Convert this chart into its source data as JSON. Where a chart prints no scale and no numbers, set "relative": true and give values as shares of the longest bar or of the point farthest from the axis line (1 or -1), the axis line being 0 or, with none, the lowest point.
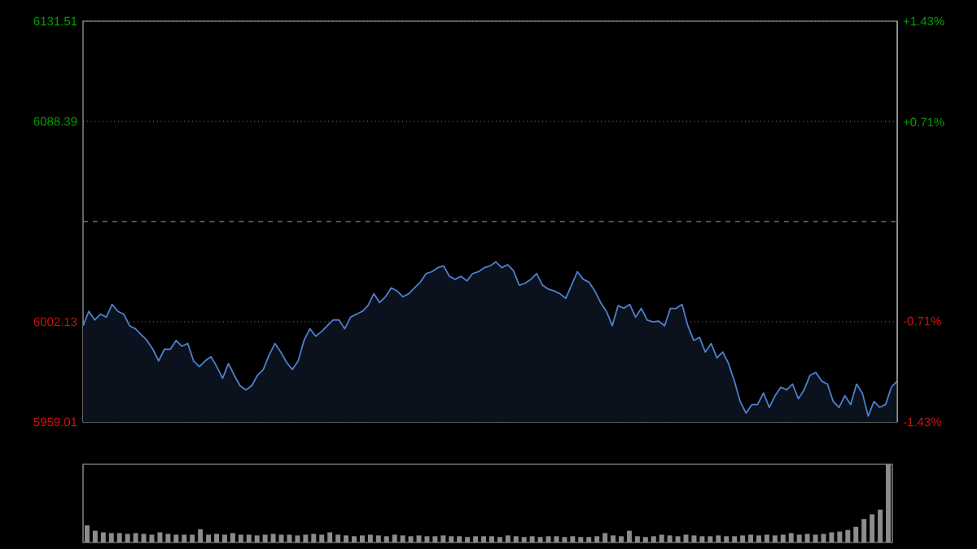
{
  "chart_data": [
    {
      "type": "area",
      "categories": [
        null,
        null,
        null,
        null,
        null,
        null,
        null,
        null,
        null,
        null,
        null,
        null,
        null,
        null,
        null,
        null,
        null,
        null,
        null,
        null,
        null,
        null,
        null,
        null,
        null,
        null,
        null,
        null,
        null,
        null,
        null,
        null,
        null,
        null,
        null,
        null,
        null,
        null,
        null,
        null,
        null,
        null,
        null,
        null,
        null,
        null,
        null,
        null,
        null,
        null,
        null,
        null,
        null,
        null,
        null,
        null,
        null,
        null,
        null,
        null,
        null,
        null,
        null,
        null,
        null,
        null,
        null,
        null,
        null,
        null,
        null,
        null,
        null,
        null,
        null,
        null,
        null,
        null,
        null,
        null,
        null,
        null,
        null,
        null,
        null,
        null,
        null,
        null,
        null,
        null,
        null,
        null,
        null,
        null,
        null,
        null,
        null,
        null,
        null,
        null,
        null,
        null,
        null,
        null,
        null,
        null,
        null,
        null,
        null,
        null,
        null,
        null,
        null,
        null,
        null,
        null,
        null,
        null,
        null,
        null,
        null,
        null,
        null,
        null,
        null,
        null,
        null,
        null,
        null,
        null,
        null,
        null,
        null,
        null,
        null,
        null,
        null,
        null,
        null,
        null,
        null
      ],
      "series": [
        {
          "color": "#4f7fcf",
          "values": [
            6000.4,
            6006.6,
            6002.9,
            6005.4,
            6004.1,
            6009.6,
            6006.6,
            6005.4,
            6000.4,
            5999.1,
            5996.6,
            5994.1,
            5990.3,
            5985.3,
            5990.3,
            5990.3,
            5994.1,
            5991.6,
            5992.8,
            5985.3,
            5982.8,
            5985.3,
            5987.1,
            5982.8,
            5977.8,
            5984.1,
            5979.1,
            5974.6,
            5972.8,
            5974.6,
            5979.1,
            5981.6,
            5987.8,
            5992.8,
            5989.1,
            5984.6,
            5981.6,
            5985.3,
            5994.1,
            5999.1,
            5995.9,
            5997.9,
            6000.4,
            6002.9,
            6002.9,
            5999.1,
            6004.1,
            6005.4,
            6006.6,
            6009.1,
            6014.2,
            6010.4,
            6012.9,
            6016.7,
            6015.4,
            6012.9,
            6014.2,
            6016.7,
            6019.2,
            6022.9,
            6023.7,
            6025.4,
            6026.2,
            6021.7,
            6020.4,
            6021.7,
            6019.7,
            6022.9,
            6023.7,
            6025.4,
            6026.2,
            6027.9,
            6025.4,
            6026.7,
            6024.2,
            6017.9,
            6018.7,
            6020.4,
            6022.9,
            6017.9,
            6016.2,
            6015.4,
            6014.2,
            6012.2,
            6017.9,
            6023.7,
            6020.4,
            6019.2,
            6015.4,
            6010.4,
            6006.6,
            6000.4,
            6009.1,
            6007.9,
            6009.6,
            6004.1,
            6007.9,
            6002.9,
            6002.1,
            6002.4,
            6000.4,
            6007.9,
            6007.9,
            6009.6,
            6000.4,
            5994.1,
            5995.4,
            5989.1,
            5992.8,
            5986.6,
            5989.1,
            5984.1,
            5976.6,
            5967.8,
            5962.8,
            5966.5,
            5966.5,
            5971.5,
            5965.3,
            5970.3,
            5974.0,
            5972.8,
            5975.3,
            5969.0,
            5972.8,
            5979.1,
            5980.3,
            5976.6,
            5975.3,
            5967.8,
            5965.3,
            5970.3,
            5966.5,
            5975.3,
            5971.5,
            5961.5,
            5967.8,
            5965.3,
            5966.5,
            5974.0,
            5976.6
          ]
        }
      ],
      "ylim": [
        5959.01,
        6131.51
      ],
      "yticks": [
        5959.01,
        6002.13,
        6088.39,
        6131.51
      ],
      "y2lim": [
        -1.43,
        1.43
      ],
      "y2ticks": [
        {
          "value": -1.43,
          "label": "-1.43%"
        },
        {
          "value": -0.71,
          "label": "-0.71%"
        },
        {
          "value": 0.71,
          "label": "+0.71%"
        },
        {
          "value": 1.43,
          "label": "+1.43%"
        }
      ],
      "grid": "y",
      "ref_lines": [
        {
          "axis": "y",
          "value": 6045.26,
          "line_style": "dashed"
        }
      ]
    },
    {
      "type": "bar",
      "relative": true,
      "color": "#8c8c8c",
      "categories": [
        null,
        null,
        null,
        null,
        null,
        null,
        null,
        null,
        null,
        null,
        null,
        null,
        null,
        null,
        null,
        null,
        null,
        null,
        null,
        null,
        null,
        null,
        null,
        null,
        null,
        null,
        null,
        null,
        null,
        null,
        null,
        null,
        null,
        null,
        null,
        null,
        null,
        null,
        null,
        null,
        null,
        null,
        null,
        null,
        null,
        null,
        null,
        null,
        null,
        null,
        null,
        null,
        null,
        null,
        null,
        null,
        null,
        null,
        null,
        null,
        null,
        null,
        null,
        null,
        null,
        null,
        null,
        null,
        null,
        null,
        null,
        null,
        null,
        null,
        null,
        null,
        null,
        null,
        null,
        null,
        null,
        null,
        null,
        null,
        null,
        null,
        null,
        null,
        null,
        null,
        null,
        null,
        null,
        null,
        null,
        null,
        null,
        null,
        null,
        null
      ],
      "values": [
        0.22,
        0.15,
        0.13,
        0.12,
        0.12,
        0.11,
        0.12,
        0.11,
        0.1,
        0.13,
        0.11,
        0.1,
        0.1,
        0.1,
        0.17,
        0.1,
        0.11,
        0.1,
        0.12,
        0.1,
        0.1,
        0.09,
        0.1,
        0.11,
        0.1,
        0.1,
        0.09,
        0.1,
        0.11,
        0.1,
        0.13,
        0.1,
        0.09,
        0.08,
        0.09,
        0.1,
        0.09,
        0.08,
        0.1,
        0.09,
        0.08,
        0.09,
        0.08,
        0.08,
        0.09,
        0.08,
        0.08,
        0.07,
        0.08,
        0.08,
        0.08,
        0.07,
        0.09,
        0.08,
        0.07,
        0.08,
        0.07,
        0.08,
        0.08,
        0.07,
        0.08,
        0.07,
        0.07,
        0.08,
        0.12,
        0.09,
        0.08,
        0.15,
        0.08,
        0.07,
        0.08,
        0.1,
        0.09,
        0.08,
        0.1,
        0.09,
        0.08,
        0.08,
        0.09,
        0.08,
        0.08,
        0.09,
        0.1,
        0.09,
        0.1,
        0.09,
        0.1,
        0.12,
        0.1,
        0.11,
        0.1,
        0.11,
        0.13,
        0.14,
        0.16,
        0.2,
        0.3,
        0.36,
        0.42,
        1.0
      ]
    }
  ]
}
